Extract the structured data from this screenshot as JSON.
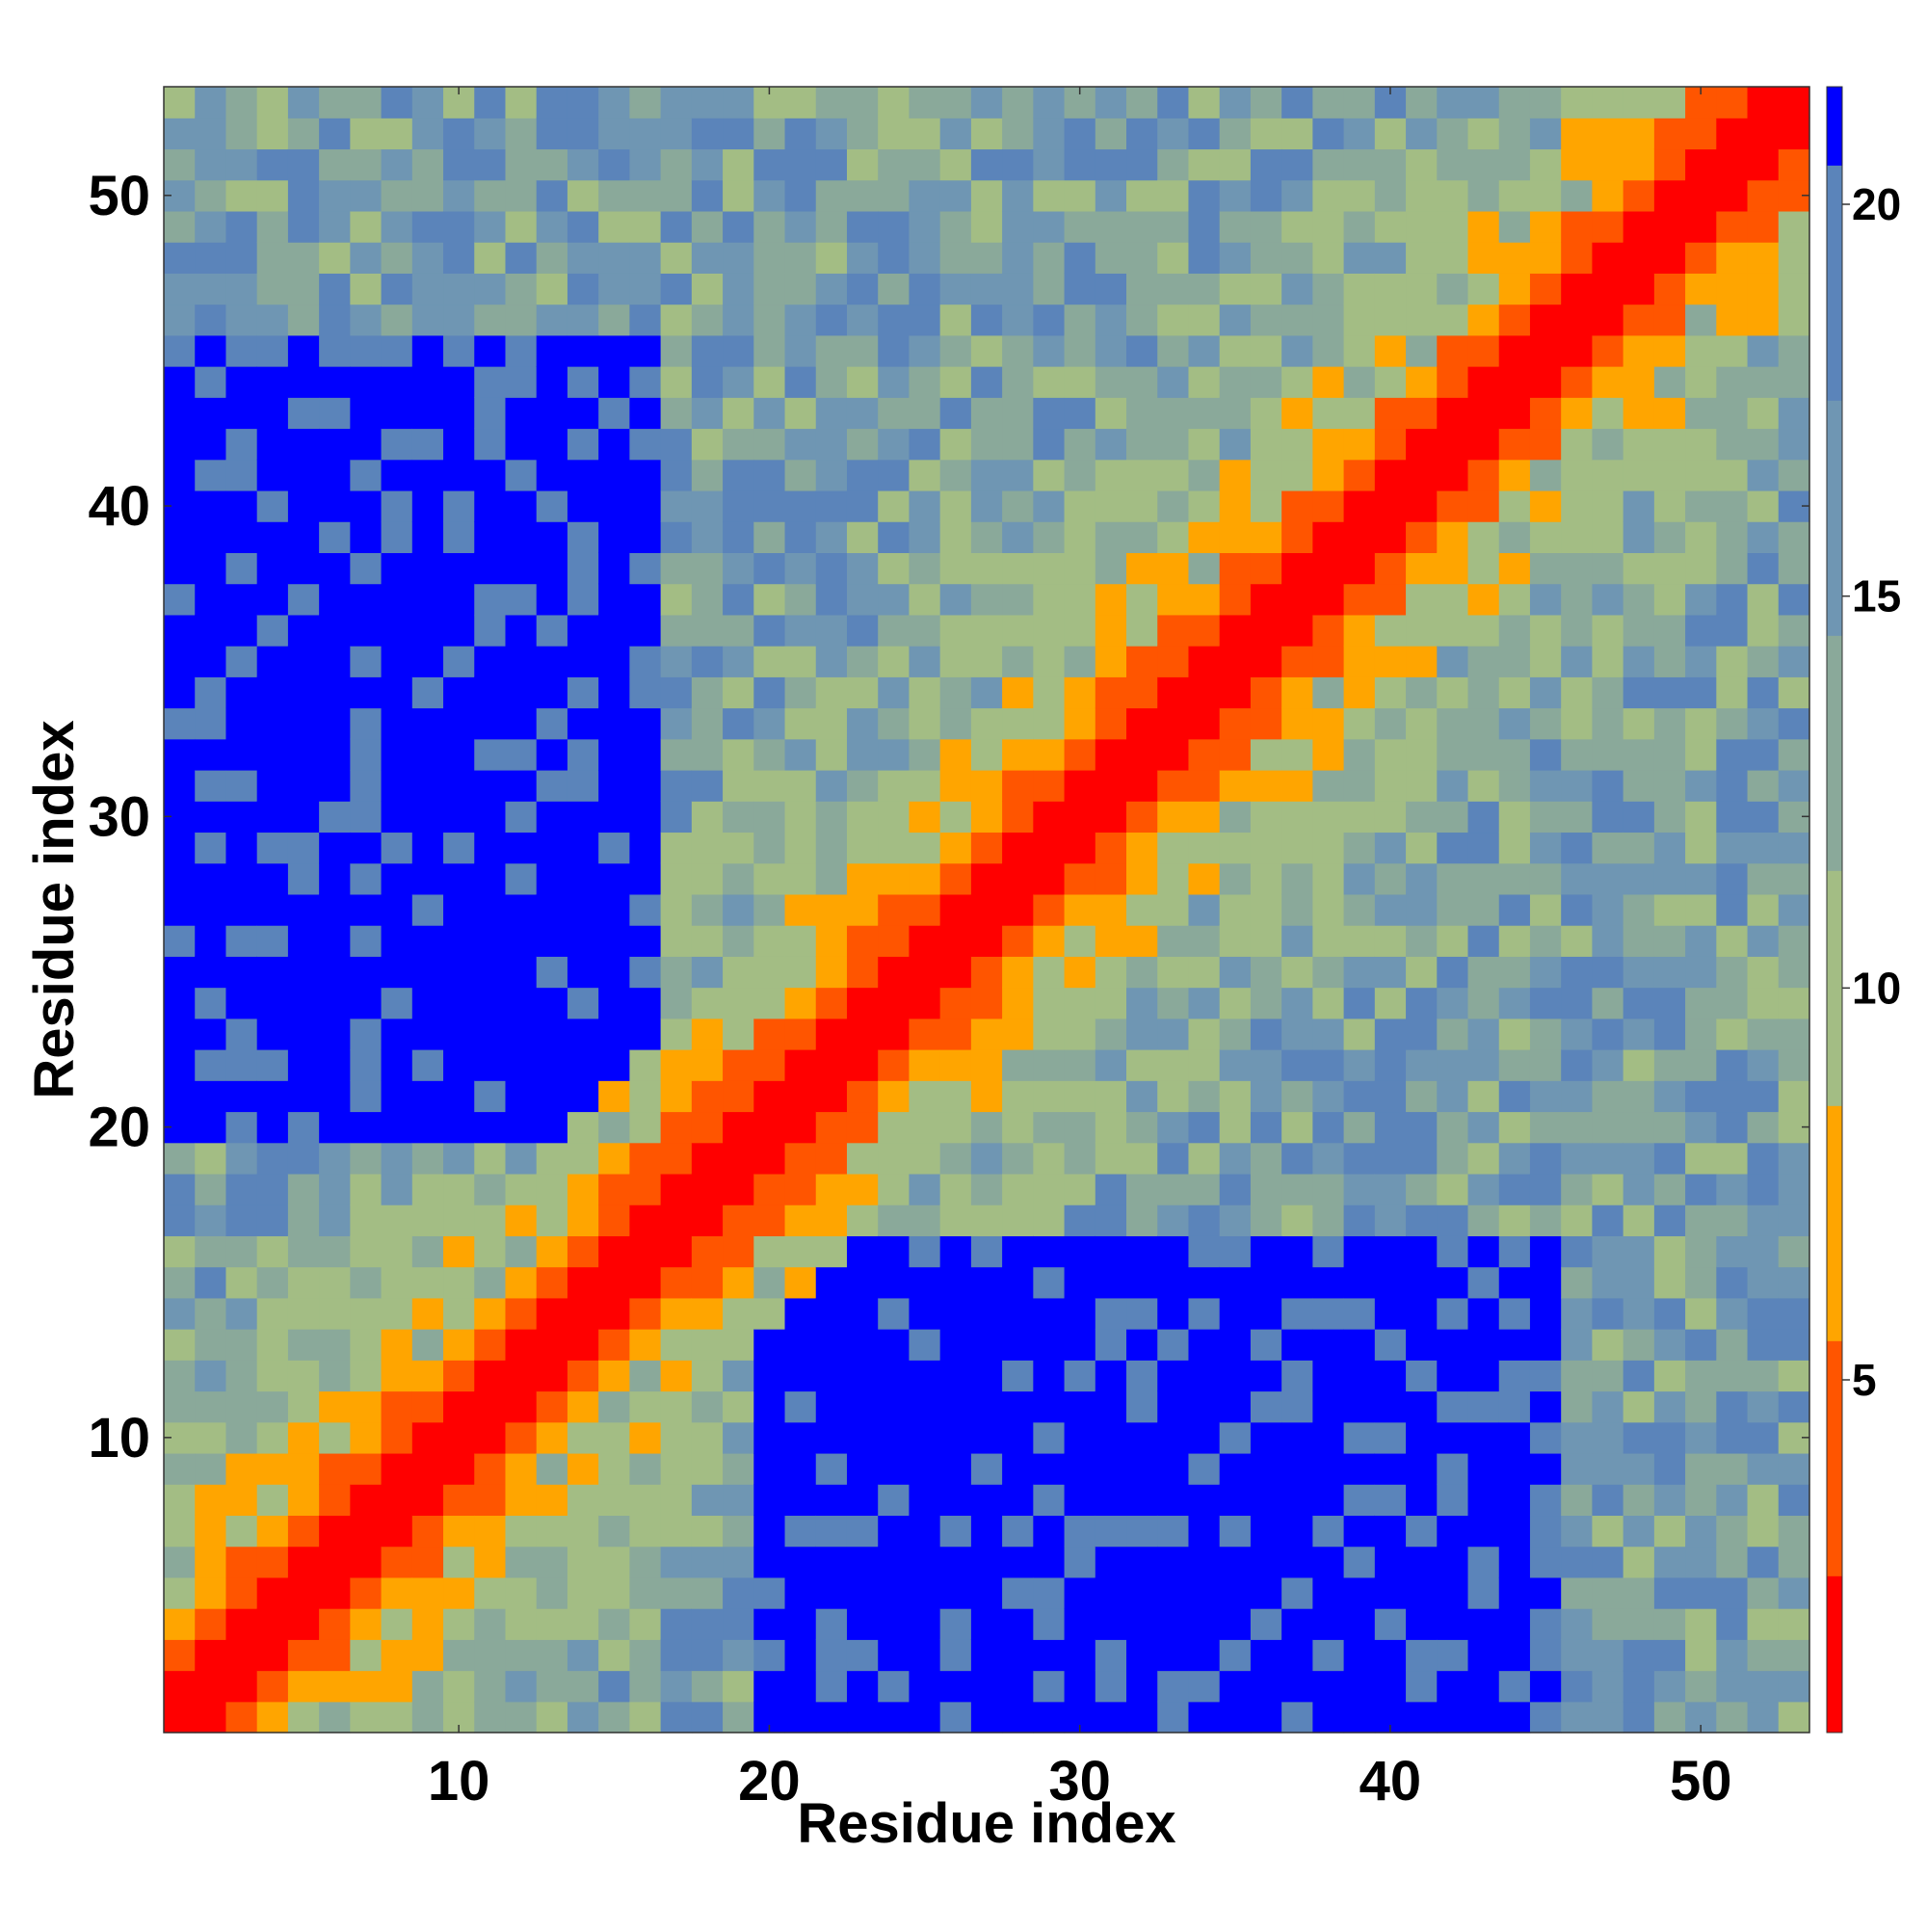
{
  "chart_data": {
    "type": "heatmap",
    "title": "",
    "xlabel": "Residue index",
    "ylabel": "Residue index",
    "n": 53,
    "xlim": [
      0.5,
      53.5
    ],
    "ylim": [
      0.5,
      53.5
    ],
    "x_ticks": [
      10,
      20,
      30,
      40,
      50
    ],
    "y_ticks": [
      10,
      20,
      30,
      40,
      50
    ],
    "colorbar": {
      "range": [
        0.5,
        21.5
      ],
      "ticks": [
        5,
        10,
        15,
        20
      ],
      "bins": [
        {
          "from": 0.5,
          "to": 2.5,
          "color": "#ff0000"
        },
        {
          "from": 2.5,
          "to": 5.5,
          "color": "#ff5500"
        },
        {
          "from": 5.5,
          "to": 8.5,
          "color": "#ffa500"
        },
        {
          "from": 8.5,
          "to": 11.5,
          "color": "#a3bd84"
        },
        {
          "from": 11.5,
          "to": 14.5,
          "color": "#8aa99a"
        },
        {
          "from": 14.5,
          "to": 17.5,
          "color": "#6f96b3"
        },
        {
          "from": 17.5,
          "to": 20.5,
          "color": "#5b84ba"
        },
        {
          "from": 20.5,
          "to": 21.5,
          "color": "#0000ff"
        }
      ]
    },
    "domains": [
      {
        "x": [
          1,
          16
        ],
        "y": [
          20,
          45
        ]
      },
      {
        "x": [
          22,
          45
        ],
        "y": [
          1,
          15
        ]
      }
    ],
    "note_values": "cell value = C-alpha distance bin; diagonal ~1, far off-diagonal ~20-21"
  }
}
